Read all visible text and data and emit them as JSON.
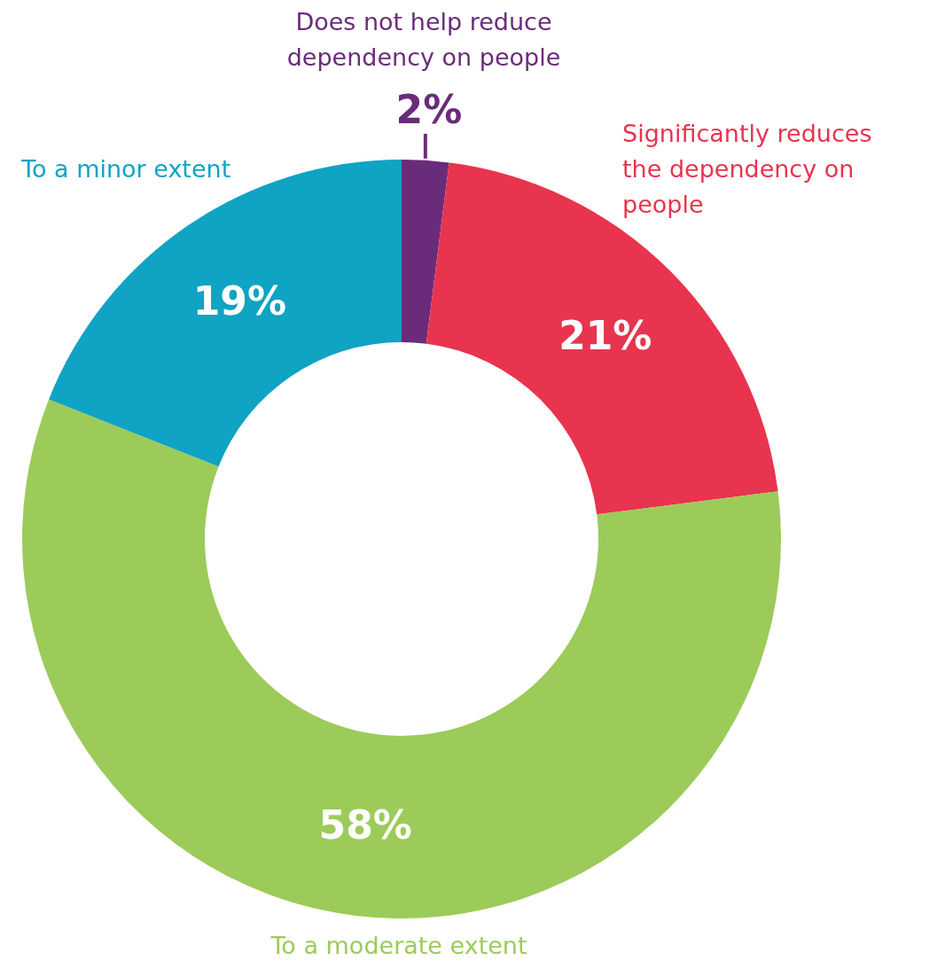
{
  "chart_data": {
    "type": "donut",
    "categories": [
      "Does not help reduce dependency on people",
      "Significantly reduces the dependency on people",
      "To a moderate extent",
      "To a minor extent"
    ],
    "values": [
      2,
      21,
      58,
      19
    ],
    "colors": [
      "#6a2c7a",
      "#e8344e",
      "#9ccb5a",
      "#0fa3c4"
    ],
    "value_labels": [
      "2%",
      "21%",
      "58%",
      "19%"
    ]
  }
}
